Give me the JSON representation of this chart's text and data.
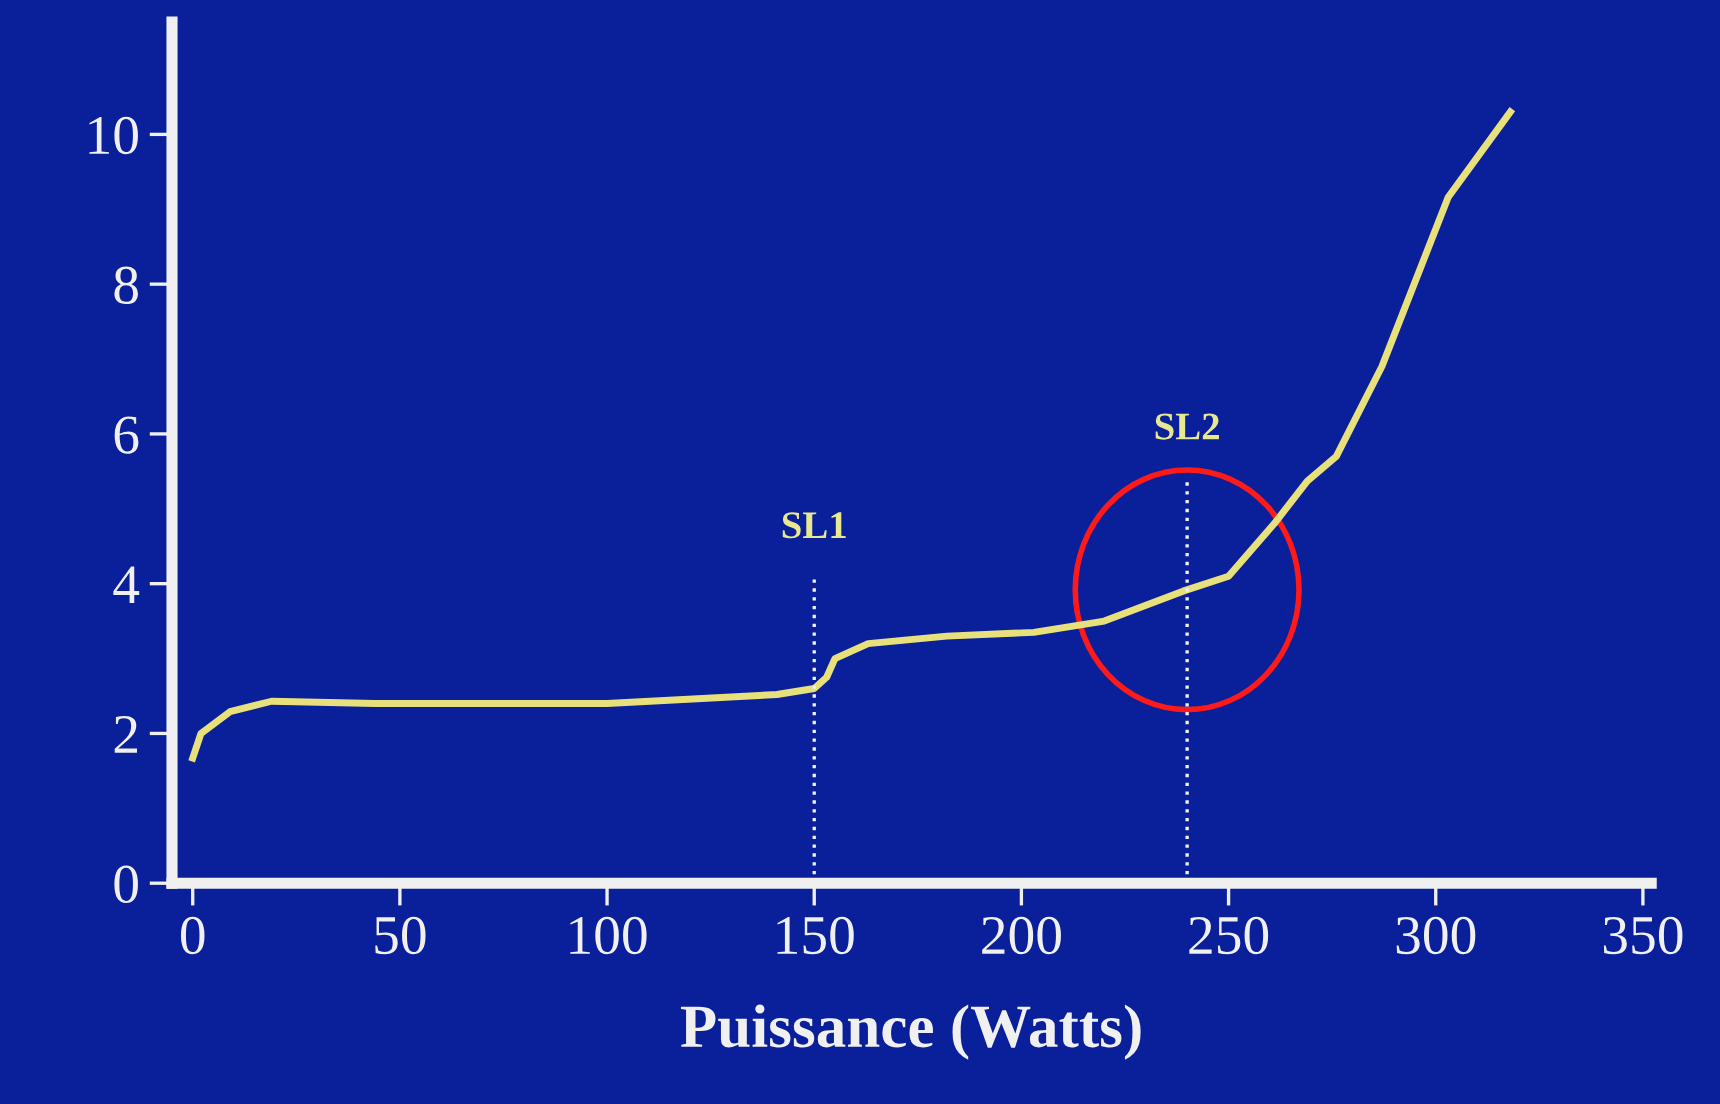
{
  "chart_data": {
    "type": "line",
    "xlabel": "Puissance (Watts)",
    "x": [
      0,
      2,
      9,
      19,
      44,
      100,
      141,
      150,
      153,
      155,
      163,
      182,
      203,
      220,
      239,
      250,
      261,
      269,
      276,
      287,
      303,
      318
    ],
    "series": [
      {
        "color": "#e8e07a",
        "values": [
          1.67,
          2.0,
          2.29,
          2.43,
          2.4,
          2.4,
          2.52,
          2.6,
          2.75,
          3.0,
          3.2,
          3.3,
          3.35,
          3.5,
          3.9,
          4.1,
          4.8,
          5.37,
          5.7,
          6.9,
          9.16,
          10.3
        ]
      }
    ],
    "xlim": [
      -5,
      352
    ],
    "ylim": [
      0,
      11.5
    ],
    "xticks": [
      0,
      50,
      100,
      150,
      200,
      250,
      300,
      350
    ],
    "yticks": [
      0,
      2,
      4,
      6,
      8,
      10
    ],
    "ref_lines": [
      {
        "axis": "x",
        "value": 150,
        "label": "SL1",
        "line_style": "dotted"
      },
      {
        "axis": "x",
        "value": 240,
        "label": "SL2",
        "line_style": "dotted"
      }
    ],
    "grid": false,
    "marker": "none",
    "line_style": "solid"
  }
}
